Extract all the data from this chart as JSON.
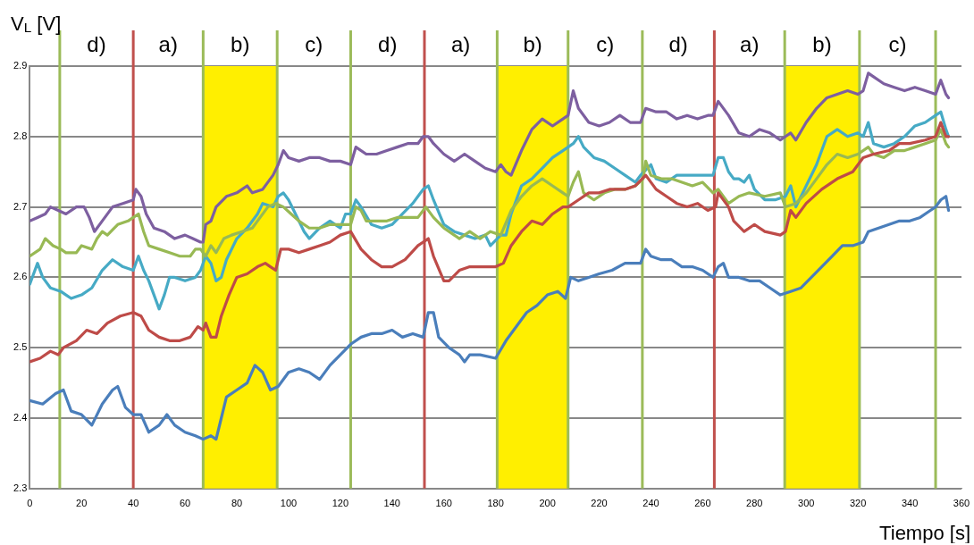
{
  "chart_data": {
    "type": "line",
    "xlabel": "Tiempo [s]",
    "ylabel": "V$_{L}$ [V]",
    "xlim": [
      0,
      360
    ],
    "xticks": [
      0,
      20,
      40,
      60,
      80,
      100,
      120,
      140,
      160,
      180,
      200,
      220,
      240,
      260,
      280,
      300,
      320,
      340,
      360
    ],
    "ylim": [
      2.3,
      2.9
    ],
    "yticks": [
      2.3,
      2.4,
      2.5,
      2.6,
      2.7,
      2.8,
      2.9
    ],
    "grid": "y",
    "legend": false,
    "marker": "none",
    "line_style": "solid",
    "bands": [
      {
        "axis": "x",
        "from": 67,
        "to": 95.6,
        "color": "#ffef00"
      },
      {
        "axis": "x",
        "from": 180.6,
        "to": 208,
        "color": "#ffef00"
      },
      {
        "axis": "x",
        "from": 291.7,
        "to": 320.6,
        "color": "#ffef00"
      }
    ],
    "ref_lines": [
      {
        "axis": "x",
        "value": 11.6,
        "color": "#9bbb59"
      },
      {
        "axis": "x",
        "value": 40,
        "color": "#c0504d"
      },
      {
        "axis": "x",
        "value": 67,
        "color": "#9bbb59"
      },
      {
        "axis": "x",
        "value": 95.6,
        "color": "#9bbb59"
      },
      {
        "axis": "x",
        "value": 124,
        "color": "#9bbb59"
      },
      {
        "axis": "x",
        "value": 152.5,
        "color": "#c0504d"
      },
      {
        "axis": "x",
        "value": 180.6,
        "color": "#9bbb59"
      },
      {
        "axis": "x",
        "value": 208,
        "color": "#9bbb59"
      },
      {
        "axis": "x",
        "value": 236.7,
        "color": "#9bbb59"
      },
      {
        "axis": "x",
        "value": 264.5,
        "color": "#c0504d"
      },
      {
        "axis": "x",
        "value": 291.7,
        "color": "#9bbb59"
      },
      {
        "axis": "x",
        "value": 320.6,
        "color": "#9bbb59"
      },
      {
        "axis": "x",
        "value": 350,
        "color": "#9bbb59"
      }
    ],
    "annotations": [
      "d)",
      "a)",
      "b)",
      "c)",
      "d)",
      "a)",
      "b)",
      "c)",
      "d)",
      "a)",
      "b)",
      "c)"
    ],
    "series": [
      {
        "color": "#4a7ebb",
        "x": [
          0,
          5,
          10,
          13,
          16,
          20,
          24,
          28,
          32,
          34,
          37,
          40,
          43,
          46,
          50,
          53,
          56,
          60,
          64,
          67,
          70,
          72,
          74,
          76,
          80,
          84,
          87,
          90,
          93,
          96,
          100,
          104,
          108,
          112,
          116,
          120,
          124,
          128,
          132,
          136,
          140,
          144,
          148,
          152,
          154,
          156,
          158,
          162,
          166,
          168,
          170,
          174,
          180,
          184,
          188,
          192,
          196,
          200,
          204,
          207,
          209,
          212,
          216,
          220,
          225,
          230,
          236,
          238,
          240,
          244,
          248,
          252,
          256,
          260,
          264,
          266,
          268,
          270,
          274,
          278,
          282,
          286,
          290,
          294,
          298,
          302,
          306,
          310,
          314,
          318,
          322,
          324,
          328,
          332,
          336,
          340,
          344,
          348,
          350,
          352,
          354,
          355
        ],
        "values": [
          2.425,
          2.42,
          2.435,
          2.44,
          2.41,
          2.405,
          2.39,
          2.42,
          2.44,
          2.445,
          2.415,
          2.405,
          2.405,
          2.38,
          2.39,
          2.405,
          2.39,
          2.38,
          2.375,
          2.37,
          2.375,
          2.37,
          2.4,
          2.43,
          2.44,
          2.45,
          2.475,
          2.465,
          2.44,
          2.445,
          2.465,
          2.47,
          2.465,
          2.455,
          2.475,
          2.49,
          2.505,
          2.515,
          2.52,
          2.52,
          2.525,
          2.515,
          2.52,
          2.515,
          2.55,
          2.55,
          2.515,
          2.5,
          2.49,
          2.48,
          2.49,
          2.49,
          2.485,
          2.51,
          2.53,
          2.55,
          2.56,
          2.575,
          2.58,
          2.57,
          2.6,
          2.595,
          2.6,
          2.605,
          2.61,
          2.62,
          2.62,
          2.64,
          2.63,
          2.625,
          2.625,
          2.615,
          2.615,
          2.61,
          2.6,
          2.615,
          2.62,
          2.6,
          2.6,
          2.595,
          2.595,
          2.585,
          2.575,
          2.58,
          2.585,
          2.6,
          2.615,
          2.63,
          2.645,
          2.645,
          2.65,
          2.665,
          2.67,
          2.675,
          2.68,
          2.68,
          2.685,
          2.695,
          2.7,
          2.71,
          2.715,
          2.695
        ]
      },
      {
        "color": "#be4b48",
        "x": [
          0,
          4,
          8,
          11,
          13,
          18,
          22,
          26,
          30,
          35,
          40,
          43,
          46,
          50,
          54,
          58,
          62,
          65,
          67,
          68,
          70,
          72,
          74,
          77,
          80,
          84,
          88,
          91,
          93,
          95,
          97,
          100,
          104,
          108,
          112,
          116,
          120,
          124,
          128,
          132,
          136,
          140,
          145,
          150,
          152,
          154,
          156,
          160,
          162,
          166,
          170,
          174,
          178,
          180,
          183,
          186,
          190,
          194,
          198,
          202,
          206,
          208,
          212,
          216,
          220,
          224,
          230,
          234,
          238,
          242,
          246,
          250,
          254,
          258,
          262,
          265,
          266,
          270,
          272,
          276,
          280,
          284,
          290,
          292,
          294,
          296,
          300,
          306,
          312,
          318,
          322,
          326,
          332,
          336,
          340,
          346,
          350,
          352,
          354,
          355
        ],
        "values": [
          2.48,
          2.485,
          2.495,
          2.49,
          2.5,
          2.51,
          2.525,
          2.52,
          2.535,
          2.545,
          2.55,
          2.545,
          2.525,
          2.515,
          2.51,
          2.51,
          2.515,
          2.53,
          2.525,
          2.535,
          2.515,
          2.515,
          2.545,
          2.575,
          2.6,
          2.605,
          2.615,
          2.62,
          2.615,
          2.61,
          2.64,
          2.64,
          2.635,
          2.64,
          2.645,
          2.65,
          2.66,
          2.665,
          2.64,
          2.625,
          2.615,
          2.615,
          2.625,
          2.645,
          2.65,
          2.655,
          2.63,
          2.595,
          2.595,
          2.61,
          2.615,
          2.615,
          2.615,
          2.615,
          2.62,
          2.645,
          2.665,
          2.68,
          2.675,
          2.69,
          2.7,
          2.7,
          2.71,
          2.72,
          2.72,
          2.725,
          2.725,
          2.73,
          2.745,
          2.725,
          2.715,
          2.705,
          2.7,
          2.705,
          2.695,
          2.7,
          2.72,
          2.7,
          2.68,
          2.665,
          2.675,
          2.665,
          2.66,
          2.665,
          2.695,
          2.685,
          2.705,
          2.725,
          2.74,
          2.75,
          2.77,
          2.775,
          2.78,
          2.79,
          2.79,
          2.795,
          2.8,
          2.82,
          2.8,
          2.8
        ]
      },
      {
        "color": "#98b954",
        "x": [
          0,
          4,
          6,
          9,
          12,
          14,
          18,
          20,
          24,
          26,
          28,
          30,
          34,
          38,
          40,
          42,
          44,
          46,
          50,
          54,
          58,
          62,
          64,
          66,
          68,
          70,
          72,
          75,
          78,
          82,
          86,
          88,
          92,
          95,
          98,
          101,
          104,
          108,
          112,
          116,
          120,
          124,
          126,
          128,
          130,
          134,
          138,
          142,
          146,
          150,
          153,
          156,
          160,
          164,
          166,
          170,
          174,
          178,
          182,
          186,
          190,
          194,
          198,
          202,
          206,
          208,
          210,
          212,
          214,
          218,
          222,
          226,
          230,
          234,
          237,
          238,
          240,
          244,
          248,
          252,
          256,
          260,
          264,
          266,
          270,
          274,
          278,
          284,
          290,
          292,
          296,
          300,
          304,
          308,
          312,
          316,
          320,
          324,
          326,
          330,
          334,
          338,
          342,
          346,
          350,
          352,
          354,
          355
        ],
        "values": [
          2.63,
          2.64,
          2.655,
          2.645,
          2.64,
          2.635,
          2.635,
          2.645,
          2.64,
          2.655,
          2.665,
          2.66,
          2.675,
          2.68,
          2.685,
          2.69,
          2.665,
          2.645,
          2.64,
          2.635,
          2.63,
          2.63,
          2.64,
          2.64,
          2.63,
          2.645,
          2.635,
          2.655,
          2.66,
          2.665,
          2.67,
          2.68,
          2.7,
          2.705,
          2.7,
          2.69,
          2.68,
          2.67,
          2.67,
          2.675,
          2.675,
          2.675,
          2.7,
          2.695,
          2.68,
          2.68,
          2.68,
          2.685,
          2.685,
          2.685,
          2.7,
          2.685,
          2.67,
          2.66,
          2.655,
          2.665,
          2.655,
          2.665,
          2.66,
          2.695,
          2.715,
          2.73,
          2.74,
          2.73,
          2.72,
          2.715,
          2.735,
          2.75,
          2.72,
          2.71,
          2.72,
          2.725,
          2.725,
          2.73,
          2.74,
          2.765,
          2.745,
          2.74,
          2.74,
          2.735,
          2.73,
          2.735,
          2.72,
          2.725,
          2.705,
          2.715,
          2.72,
          2.715,
          2.72,
          2.7,
          2.705,
          2.72,
          2.74,
          2.76,
          2.775,
          2.77,
          2.775,
          2.785,
          2.775,
          2.77,
          2.78,
          2.78,
          2.785,
          2.79,
          2.795,
          2.81,
          2.79,
          2.785
        ]
      },
      {
        "color": "#46aac5",
        "x": [
          0,
          3,
          5,
          8,
          12,
          14,
          16,
          20,
          24,
          28,
          32,
          36,
          40,
          42,
          44,
          46,
          50,
          52,
          54,
          56,
          60,
          64,
          66,
          68,
          70,
          72,
          74,
          76,
          80,
          84,
          88,
          90,
          94,
          96,
          98,
          100,
          102,
          106,
          108,
          112,
          116,
          120,
          122,
          124,
          126,
          128,
          132,
          136,
          140,
          144,
          148,
          150,
          152,
          154,
          156,
          160,
          164,
          168,
          172,
          176,
          178,
          182,
          184,
          186,
          190,
          194,
          198,
          202,
          206,
          208,
          210,
          212,
          214,
          218,
          222,
          226,
          230,
          234,
          236,
          240,
          242,
          246,
          250,
          254,
          260,
          264,
          266,
          268,
          270,
          272,
          274,
          276,
          278,
          280,
          284,
          288,
          292,
          294,
          296,
          300,
          304,
          308,
          312,
          316,
          320,
          322,
          324,
          326,
          330,
          334,
          338,
          342,
          346,
          350,
          352,
          354,
          355
        ],
        "values": [
          2.59,
          2.62,
          2.6,
          2.585,
          2.58,
          2.575,
          2.57,
          2.575,
          2.585,
          2.61,
          2.625,
          2.615,
          2.61,
          2.63,
          2.61,
          2.595,
          2.555,
          2.575,
          2.6,
          2.6,
          2.595,
          2.6,
          2.61,
          2.63,
          2.62,
          2.595,
          2.6,
          2.625,
          2.655,
          2.67,
          2.69,
          2.705,
          2.7,
          2.715,
          2.72,
          2.71,
          2.695,
          2.665,
          2.655,
          2.67,
          2.68,
          2.67,
          2.69,
          2.69,
          2.71,
          2.7,
          2.675,
          2.67,
          2.675,
          2.69,
          2.705,
          2.715,
          2.725,
          2.73,
          2.71,
          2.675,
          2.665,
          2.66,
          2.655,
          2.66,
          2.645,
          2.66,
          2.66,
          2.69,
          2.73,
          2.74,
          2.755,
          2.77,
          2.78,
          2.785,
          2.79,
          2.8,
          2.785,
          2.77,
          2.765,
          2.755,
          2.745,
          2.735,
          2.745,
          2.76,
          2.74,
          2.735,
          2.745,
          2.745,
          2.745,
          2.745,
          2.77,
          2.77,
          2.75,
          2.74,
          2.74,
          2.735,
          2.745,
          2.725,
          2.71,
          2.71,
          2.715,
          2.73,
          2.7,
          2.73,
          2.76,
          2.8,
          2.81,
          2.8,
          2.805,
          2.8,
          2.82,
          2.79,
          2.785,
          2.79,
          2.8,
          2.815,
          2.82,
          2.83,
          2.835,
          2.81,
          2.8
        ]
      },
      {
        "color": "#7d5fa0",
        "x": [
          0,
          3,
          6,
          8,
          11,
          14,
          18,
          21,
          23,
          25,
          28,
          32,
          36,
          40,
          41,
          43,
          45,
          48,
          52,
          56,
          60,
          63,
          66,
          67,
          68,
          70,
          72,
          76,
          80,
          84,
          86,
          90,
          94,
          96,
          98,
          100,
          104,
          108,
          112,
          116,
          120,
          124,
          126,
          130,
          134,
          138,
          142,
          146,
          150,
          152,
          154,
          156,
          160,
          164,
          168,
          172,
          176,
          180,
          182,
          184,
          186,
          190,
          194,
          198,
          202,
          206,
          208,
          210,
          212,
          216,
          220,
          224,
          228,
          232,
          236,
          238,
          242,
          246,
          250,
          254,
          258,
          262,
          264,
          266,
          270,
          274,
          278,
          282,
          286,
          290,
          292,
          294,
          296,
          300,
          304,
          308,
          312,
          316,
          320,
          322,
          324,
          326,
          330,
          334,
          338,
          342,
          346,
          350,
          352,
          354,
          355
        ],
        "values": [
          2.68,
          2.685,
          2.69,
          2.7,
          2.695,
          2.69,
          2.7,
          2.7,
          2.685,
          2.665,
          2.68,
          2.7,
          2.705,
          2.71,
          2.725,
          2.715,
          2.69,
          2.67,
          2.665,
          2.655,
          2.66,
          2.655,
          2.65,
          2.65,
          2.675,
          2.68,
          2.7,
          2.715,
          2.72,
          2.73,
          2.72,
          2.725,
          2.745,
          2.76,
          2.78,
          2.77,
          2.765,
          2.77,
          2.77,
          2.765,
          2.765,
          2.76,
          2.785,
          2.775,
          2.775,
          2.78,
          2.785,
          2.79,
          2.79,
          2.8,
          2.8,
          2.79,
          2.775,
          2.765,
          2.775,
          2.765,
          2.755,
          2.75,
          2.76,
          2.75,
          2.745,
          2.78,
          2.81,
          2.825,
          2.815,
          2.825,
          2.83,
          2.865,
          2.84,
          2.82,
          2.815,
          2.82,
          2.83,
          2.82,
          2.82,
          2.84,
          2.835,
          2.835,
          2.825,
          2.83,
          2.825,
          2.83,
          2.83,
          2.85,
          2.83,
          2.805,
          2.8,
          2.81,
          2.805,
          2.795,
          2.8,
          2.805,
          2.795,
          2.82,
          2.84,
          2.855,
          2.86,
          2.865,
          2.86,
          2.865,
          2.89,
          2.885,
          2.875,
          2.87,
          2.865,
          2.87,
          2.865,
          2.86,
          2.88,
          2.86,
          2.855
        ]
      }
    ]
  }
}
